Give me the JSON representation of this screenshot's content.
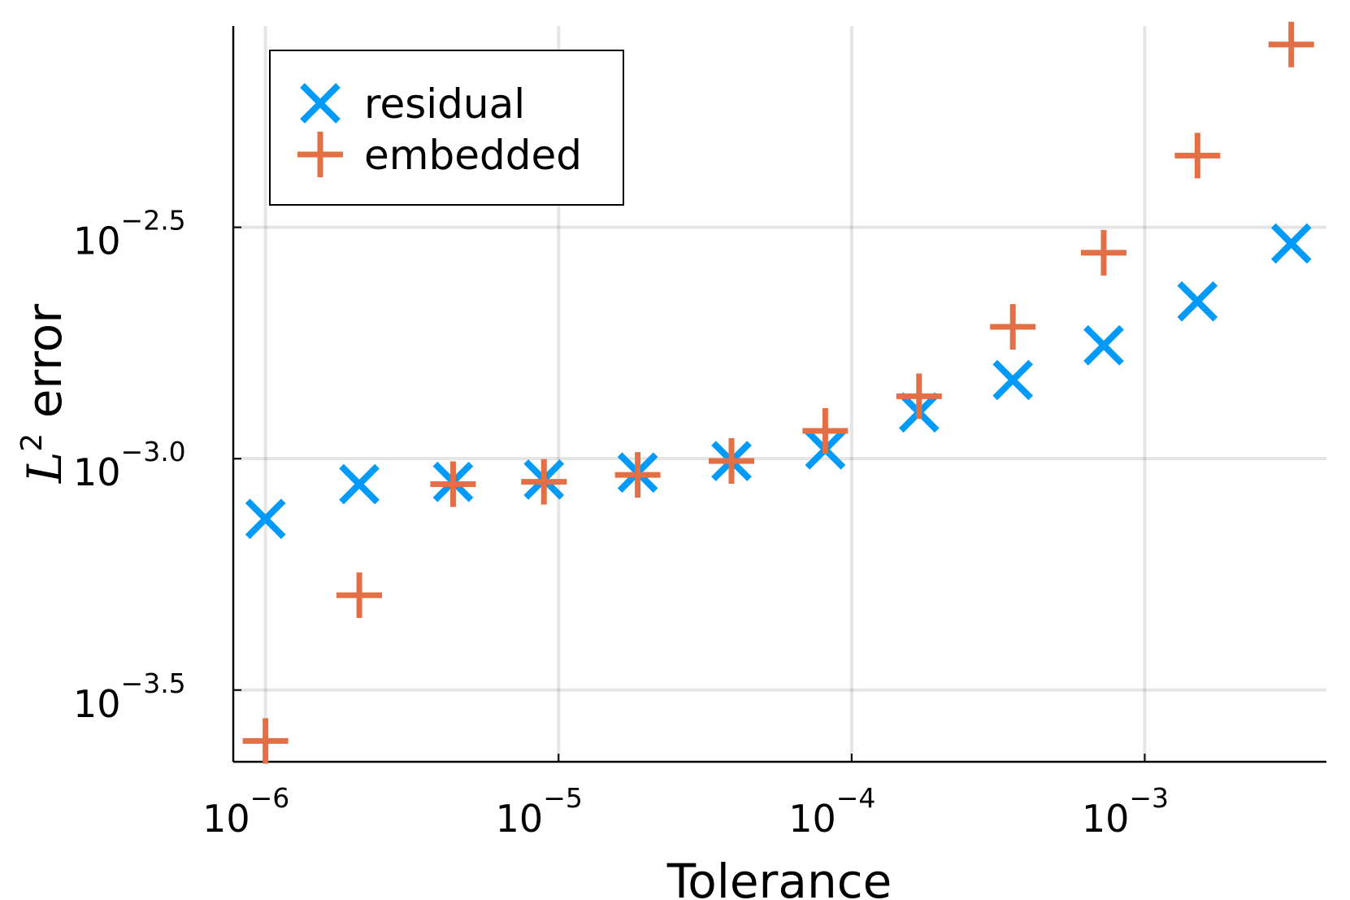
{
  "chart_data": {
    "type": "scatter",
    "title": "",
    "xlabel": "Tolerance",
    "ylabel": {
      "base": "L",
      "superscript": "2",
      "text": "error"
    },
    "xscale": "log10",
    "yscale": "log10",
    "xlim_log10": [
      -6.11,
      -2.38
    ],
    "ylim_log10": [
      -3.655,
      -2.065
    ],
    "grid": true,
    "legend_position": "top-left",
    "xticks": [
      {
        "base": "10",
        "exp": "−6",
        "value_log10": -6
      },
      {
        "base": "10",
        "exp": "−5",
        "value_log10": -5
      },
      {
        "base": "10",
        "exp": "−4",
        "value_log10": -4
      },
      {
        "base": "10",
        "exp": "−3",
        "value_log10": -3
      }
    ],
    "yticks": [
      {
        "base": "10",
        "exp": "−3.5",
        "value_log10": -3.5
      },
      {
        "base": "10",
        "exp": "−3.0",
        "value_log10": -3.0
      },
      {
        "base": "10",
        "exp": "−2.5",
        "value_log10": -2.5
      }
    ],
    "series": [
      {
        "name": "residual",
        "marker": "x",
        "color": "#009AFA",
        "x_log10": [
          -6.0,
          -5.68,
          -5.36,
          -5.05,
          -4.73,
          -4.41,
          -4.09,
          -3.77,
          -3.45,
          -3.14,
          -2.82,
          -2.5
        ],
        "y_log10": [
          -3.13,
          -3.055,
          -3.05,
          -3.045,
          -3.03,
          -3.005,
          -2.98,
          -2.9,
          -2.83,
          -2.755,
          -2.66,
          -2.535
        ]
      },
      {
        "name": "embedded",
        "marker": "+",
        "color": "#E26F46",
        "x_log10": [
          -6.0,
          -5.68,
          -5.36,
          -5.05,
          -4.73,
          -4.41,
          -4.09,
          -3.77,
          -3.45,
          -3.14,
          -2.82,
          -2.5
        ],
        "y_log10": [
          -3.61,
          -3.295,
          -3.055,
          -3.05,
          -3.035,
          -3.005,
          -2.94,
          -2.865,
          -2.715,
          -2.555,
          -2.345,
          -2.105
        ]
      }
    ]
  }
}
